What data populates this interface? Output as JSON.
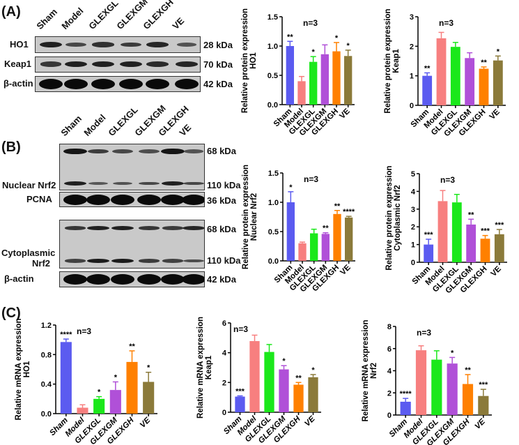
{
  "panels": {
    "a": "(A)",
    "b": "(B)",
    "c": "(C)"
  },
  "lanes": [
    "Sham",
    "Model",
    "GLEXGL",
    "GLEXGM",
    "GLEXGH",
    "VE"
  ],
  "colors": [
    "#5b5bf0",
    "#f77f7f",
    "#1be81b",
    "#b050d8",
    "#ff8000",
    "#8b7a3a"
  ],
  "blots": {
    "a": [
      {
        "label": "HO1",
        "kda": "28 kDa",
        "bands": [
          0.8,
          0.45,
          0.65,
          0.55,
          0.75,
          0.35
        ]
      },
      {
        "label": "Keap1",
        "kda": "70 kDa",
        "bands": [
          0.6,
          0.8,
          0.8,
          0.8,
          0.7,
          0.75
        ]
      },
      {
        "label": "β-actin",
        "kda": "42 kDa",
        "bands": [
          1,
          1,
          1,
          1,
          1,
          1
        ]
      }
    ],
    "b_nuclear": {
      "label": "Nuclear Nrf2",
      "kda_top": "68 kDa",
      "kda_bottom": "110 kDa"
    },
    "b_pcna": {
      "label": "PCNA",
      "kda": "36 kDa",
      "bands": [
        1,
        1,
        1,
        1,
        1,
        1
      ]
    },
    "b_cyto": {
      "label_line1": "Cytoplasmic",
      "label_line2": "Nrf2",
      "kda_top": "68 kDa",
      "kda_bottom": "110 kDa"
    },
    "b_actin": {
      "label": "β-actin",
      "kda": "42 kDa",
      "bands": [
        1,
        1,
        1,
        1,
        1,
        1
      ]
    }
  },
  "chart_data": [
    {
      "type": "bar",
      "id": "a1",
      "title": "n=3",
      "ylabel": [
        "Relative protein expression",
        "HO1"
      ],
      "categories": [
        "Sham",
        "Model",
        "GLEXGL",
        "GLEXGM",
        "GLEXGH",
        "VE"
      ],
      "values": [
        1.0,
        0.4,
        0.73,
        0.86,
        0.91,
        0.83
      ],
      "errors": [
        0.08,
        0.08,
        0.09,
        0.16,
        0.15,
        0.1
      ],
      "significance": [
        "**",
        "",
        "*",
        "",
        "*",
        "*"
      ],
      "ylim": [
        0,
        1.5
      ],
      "ticks": [
        "0.0",
        "0.5",
        "1.0",
        "1.5"
      ]
    },
    {
      "type": "bar",
      "id": "a2",
      "title": "n=3",
      "ylabel": [
        "Relative protein expression",
        "Keap1"
      ],
      "categories": [
        "Sham",
        "Model",
        "GLEXGL",
        "GLEXGM",
        "GLEXGH",
        "VE"
      ],
      "values": [
        1.0,
        2.27,
        1.98,
        1.6,
        1.24,
        1.52
      ],
      "errors": [
        0.1,
        0.2,
        0.15,
        0.18,
        0.06,
        0.15
      ],
      "significance": [
        "**",
        "",
        "",
        "",
        "**",
        "*"
      ],
      "ylim": [
        0,
        3
      ],
      "ticks": [
        "0",
        "1",
        "2",
        "3"
      ]
    },
    {
      "type": "bar",
      "id": "b1",
      "title": "n=3",
      "ylabel": [
        "Relative protein expression",
        "Nuclear Nrf2"
      ],
      "categories": [
        "Sham",
        "Model",
        "GLEXGL",
        "GLEXGM",
        "GLEXGH",
        "VE"
      ],
      "values": [
        1.0,
        0.3,
        0.47,
        0.46,
        0.8,
        0.74
      ],
      "errors": [
        0.18,
        0.02,
        0.07,
        0.02,
        0.06,
        0.02
      ],
      "significance": [
        "*",
        "",
        "",
        "**",
        "**",
        "****"
      ],
      "ylim": [
        0,
        1.5
      ],
      "ticks": [
        "0.0",
        "0.5",
        "1.0",
        "1.5"
      ]
    },
    {
      "type": "bar",
      "id": "b2",
      "title": "n=3",
      "ylabel": [
        "Relative protein expression",
        "Cytoplasmic Nrf2"
      ],
      "categories": [
        "Sham",
        "Model",
        "GLEXGL",
        "GLEXGM",
        "GLEXGH",
        "VE"
      ],
      "values": [
        1.0,
        3.45,
        3.38,
        2.13,
        1.33,
        1.58
      ],
      "errors": [
        0.3,
        0.6,
        0.45,
        0.3,
        0.18,
        0.27
      ],
      "significance": [
        "***",
        "",
        "",
        "**",
        "***",
        "***"
      ],
      "ylim": [
        0,
        5
      ],
      "ticks": [
        "0",
        "1",
        "2",
        "3",
        "4",
        "5"
      ]
    },
    {
      "type": "bar",
      "id": "c1",
      "title": "n=3",
      "ylabel": [
        "Relative mRNA expression",
        "HO1"
      ],
      "categories": [
        "Sham",
        "Model",
        "GLEXGL",
        "GLEXGM",
        "GLEXGH",
        "VE"
      ],
      "values": [
        0.97,
        0.08,
        0.2,
        0.32,
        0.7,
        0.43
      ],
      "errors": [
        0.04,
        0.04,
        0.03,
        0.11,
        0.15,
        0.13
      ],
      "significance": [
        "****",
        "",
        "*",
        "*",
        "**",
        "*"
      ],
      "ylim": [
        0,
        1.2
      ],
      "ticks": [
        "0.0",
        "0.4",
        "0.8",
        "1.2"
      ]
    },
    {
      "type": "bar",
      "id": "c2",
      "title": "n=3",
      "ylabel": [
        "Relative mRNA expression",
        "Keap1"
      ],
      "categories": [
        "Sham",
        "Model",
        "GLEXGL",
        "GLEXGM",
        "GLEXGH",
        "VE"
      ],
      "values": [
        1.05,
        4.78,
        4.05,
        2.88,
        1.85,
        2.35
      ],
      "errors": [
        0.05,
        0.4,
        0.5,
        0.25,
        0.15,
        0.18
      ],
      "significance": [
        "***",
        "",
        "",
        "*",
        "**",
        "*"
      ],
      "ylim": [
        0,
        6
      ],
      "ticks": [
        "0",
        "2",
        "4",
        "6"
      ]
    },
    {
      "type": "bar",
      "id": "c3",
      "title": "n=3",
      "ylabel": [
        "Relative mRNA expression",
        "Nrf2"
      ],
      "categories": [
        "Sham",
        "Model",
        "GLEXGL",
        "GLEXGM",
        "GLEXGH",
        "VE"
      ],
      "values": [
        1.2,
        5.85,
        5.0,
        4.65,
        2.8,
        1.72
      ],
      "errors": [
        0.3,
        0.4,
        0.8,
        0.55,
        0.85,
        0.6
      ],
      "significance": [
        "****",
        "",
        "",
        "*",
        "**",
        "***"
      ],
      "ylim": [
        0,
        8
      ],
      "ticks": [
        "0",
        "2",
        "4",
        "6",
        "8"
      ]
    }
  ]
}
